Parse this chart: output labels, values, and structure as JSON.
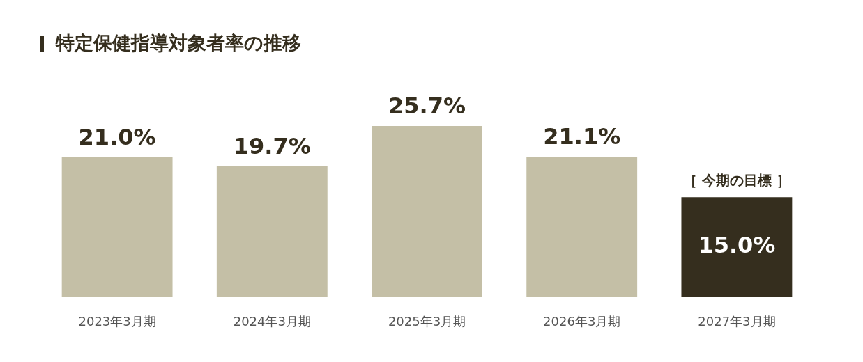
{
  "chart_data": {
    "type": "bar",
    "title": "特定保健指導対象者率の推移",
    "categories": [
      "2023年3月期",
      "2024年3月期",
      "2025年3月期",
      "2026年3月期",
      "2027年3月期"
    ],
    "values": [
      21.0,
      19.7,
      25.7,
      21.1,
      15.0
    ],
    "colors": [
      "#c4bfa6",
      "#c4bfa6",
      "#c4bfa6",
      "#c4bfa6",
      "#352e1e"
    ],
    "value_labels": [
      "21.0%",
      "19.7%",
      "25.7%",
      "21.1%",
      "15.0%"
    ],
    "annotations": [
      {
        "text": "［ 今期の目標 ］",
        "x": "2027年3月期",
        "y": 15.0
      }
    ],
    "grid": false,
    "legend": false
  }
}
